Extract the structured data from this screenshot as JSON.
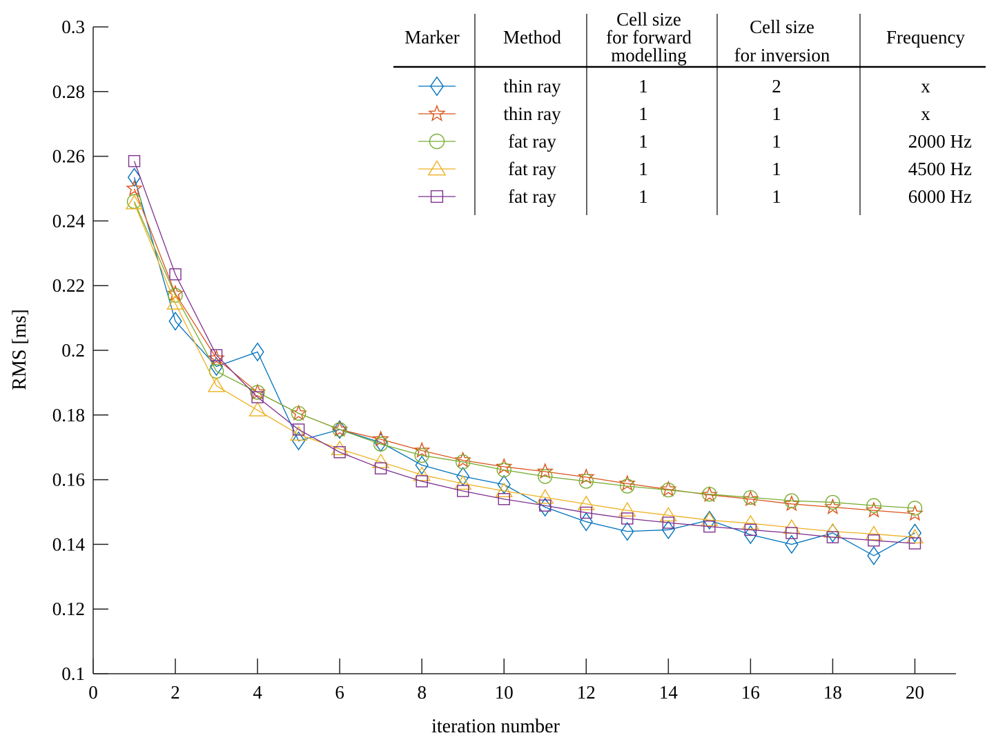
{
  "chart_data": {
    "type": "line",
    "xlabel": "iteration number",
    "ylabel": "RMS [ms]",
    "xlim": [
      0,
      21
    ],
    "ylim": [
      0.1,
      0.3
    ],
    "xticks": [
      0,
      2,
      4,
      6,
      8,
      10,
      12,
      14,
      16,
      18,
      20
    ],
    "xtick_labels": [
      "0",
      "2",
      "4",
      "6",
      "8",
      "10",
      "12",
      "14",
      "16",
      "18",
      "20"
    ],
    "yticks": [
      0.1,
      0.12,
      0.14,
      0.16,
      0.18,
      0.2,
      0.22,
      0.24,
      0.26,
      0.28,
      0.3
    ],
    "ytick_labels": [
      "0.1",
      "0.12",
      "0.14",
      "0.16",
      "0.18",
      "0.2",
      "0.22",
      "0.24",
      "0.26",
      "0.28",
      "0.3"
    ],
    "grid": false,
    "x": [
      1,
      2,
      3,
      4,
      5,
      6,
      7,
      8,
      9,
      10,
      11,
      12,
      13,
      14,
      15,
      16,
      17,
      18,
      19,
      20
    ],
    "series": [
      {
        "marker": "diamond",
        "color": "#0072BD",
        "values": [
          0.2535,
          0.209,
          0.195,
          0.1995,
          0.172,
          0.1755,
          0.1715,
          0.1645,
          0.161,
          0.1585,
          0.1515,
          0.147,
          0.144,
          0.1445,
          0.1475,
          0.143,
          0.14,
          0.1435,
          0.1365,
          0.1435
        ]
      },
      {
        "marker": "star",
        "color": "#D95319",
        "values": [
          0.25,
          0.2175,
          0.1975,
          0.187,
          0.1805,
          0.1755,
          0.1725,
          0.169,
          0.166,
          0.164,
          0.1625,
          0.1608,
          0.1588,
          0.157,
          0.1553,
          0.154,
          0.1525,
          0.1515,
          0.1505,
          0.1495
        ]
      },
      {
        "marker": "circle",
        "color": "#77AC30",
        "values": [
          0.246,
          0.217,
          0.1935,
          0.187,
          0.1805,
          0.1755,
          0.171,
          0.1675,
          0.1655,
          0.163,
          0.161,
          0.1595,
          0.158,
          0.1568,
          0.1555,
          0.1545,
          0.1535,
          0.153,
          0.152,
          0.1512
        ]
      },
      {
        "marker": "triangle",
        "color": "#EDB120",
        "values": [
          0.2455,
          0.2145,
          0.189,
          0.1815,
          0.174,
          0.1695,
          0.1655,
          0.1615,
          0.1588,
          0.1565,
          0.1545,
          0.1525,
          0.1505,
          0.149,
          0.1475,
          0.1465,
          0.1452,
          0.144,
          0.1432,
          0.1422
        ]
      },
      {
        "marker": "square",
        "color": "#7E2F8E",
        "values": [
          0.2585,
          0.2235,
          0.1985,
          0.1855,
          0.1755,
          0.1685,
          0.1635,
          0.1595,
          0.1565,
          0.154,
          0.152,
          0.1498,
          0.148,
          0.1467,
          0.1455,
          0.1445,
          0.1435,
          0.1422,
          0.1412,
          0.1403
        ]
      }
    ],
    "legend": {
      "location": "top-right",
      "headers": [
        "Marker",
        "Method",
        "Cell size\nfor forward\nmodelling",
        "Cell size\nfor inversion",
        "Frequency"
      ],
      "rows": [
        {
          "method": "thin ray",
          "cell_forward": "1",
          "cell_inversion": "2",
          "frequency": "x"
        },
        {
          "method": "thin ray",
          "cell_forward": "1",
          "cell_inversion": "1",
          "frequency": "x"
        },
        {
          "method": "fat ray",
          "cell_forward": "1",
          "cell_inversion": "1",
          "frequency": "2000 Hz"
        },
        {
          "method": "fat ray",
          "cell_forward": "1",
          "cell_inversion": "1",
          "frequency": "4500 Hz"
        },
        {
          "method": "fat ray",
          "cell_forward": "1",
          "cell_inversion": "1",
          "frequency": "6000 Hz"
        }
      ]
    }
  }
}
